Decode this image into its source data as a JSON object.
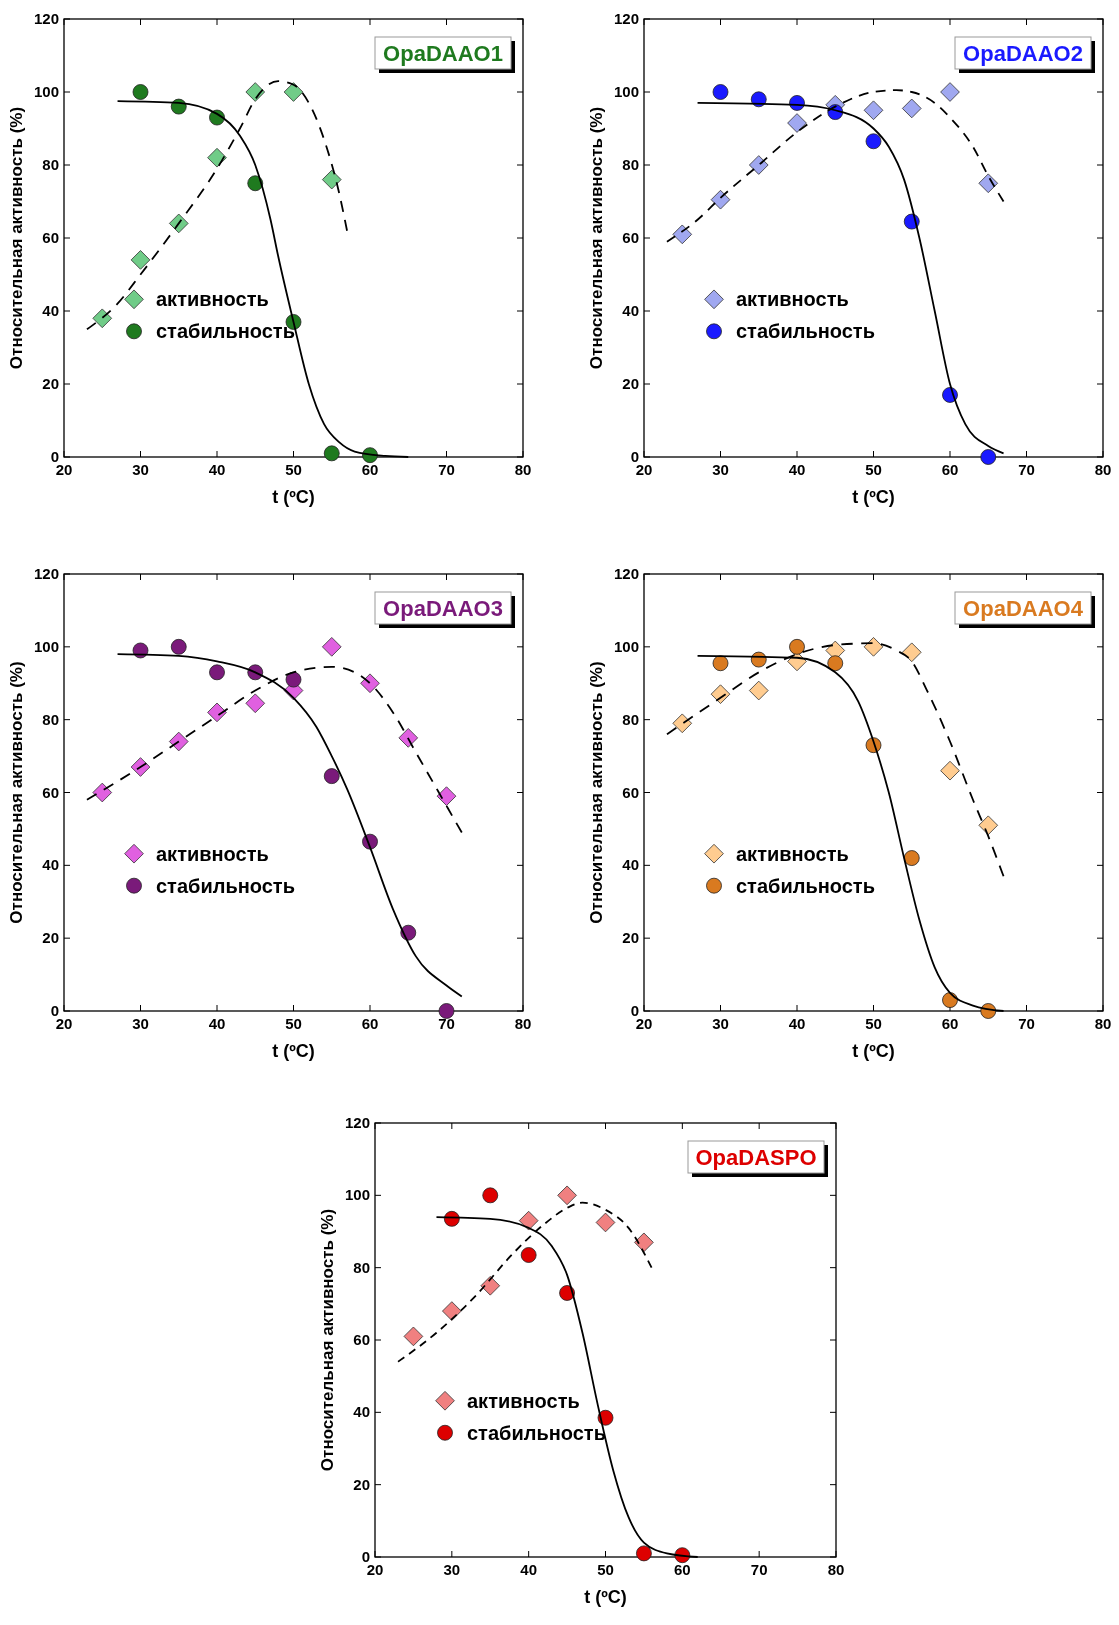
{
  "chart_data": [
    {
      "type": "scatter",
      "title": "OpaDAAO1",
      "xlabel": "t (ºC)",
      "ylabel": "Относительная активность (%)",
      "xlim": [
        20,
        80
      ],
      "ylim": [
        0,
        120
      ],
      "xticks": [
        20,
        30,
        40,
        50,
        60,
        70,
        80
      ],
      "yticks": [
        0,
        20,
        40,
        60,
        80,
        100,
        120
      ],
      "grid": false,
      "legend": "left",
      "series": [
        {
          "name": "активность",
          "type": "scatter",
          "marker": "diamond",
          "color": "#70cc88",
          "x": [
            25,
            30,
            35,
            40,
            45,
            50,
            55
          ],
          "values": [
            38,
            54,
            64,
            82,
            100,
            100,
            76
          ]
        },
        {
          "name": "стабильность",
          "type": "scatter",
          "marker": "circle",
          "color": "#1f7a1f",
          "x": [
            30,
            35,
            40,
            45,
            50,
            55,
            60
          ],
          "values": [
            100,
            96,
            93,
            75,
            37,
            1,
            0.5
          ]
        },
        {
          "type": "line",
          "marker": "none",
          "line_style": "solid",
          "color": "#000000",
          "x": [
            27,
            35,
            40,
            43,
            45,
            47,
            48,
            50,
            52,
            54,
            56,
            58,
            62,
            65
          ],
          "values": [
            97.5,
            97,
            94,
            88,
            80,
            65,
            55,
            37,
            20,
            9,
            4,
            1.5,
            0.3,
            0
          ]
        },
        {
          "type": "line",
          "marker": "none",
          "line_style": "dashed",
          "color": "#000000",
          "x": [
            23,
            27,
            30,
            35,
            40,
            43,
            45,
            48,
            50,
            52,
            54,
            56,
            57
          ],
          "values": [
            35,
            42,
            50,
            64,
            79,
            90,
            98,
            103,
            102,
            97,
            87,
            72,
            62
          ]
        }
      ]
    },
    {
      "type": "scatter",
      "title": "OpaDAAO2",
      "xlabel": "t (ºC)",
      "ylabel": "Относительная активность (%)",
      "xlim": [
        20,
        80
      ],
      "ylim": [
        0,
        120
      ],
      "xticks": [
        20,
        30,
        40,
        50,
        60,
        70,
        80
      ],
      "yticks": [
        0,
        20,
        40,
        60,
        80,
        100,
        120
      ],
      "grid": false,
      "legend": "left",
      "series": [
        {
          "name": "активность",
          "type": "scatter",
          "marker": "diamond",
          "color": "#a0a8f0",
          "x": [
            25,
            30,
            35,
            40,
            45,
            50,
            55,
            60,
            65
          ],
          "values": [
            61,
            70.5,
            80,
            91.5,
            96.5,
            95,
            95.5,
            100,
            75
          ]
        },
        {
          "name": "стабильность",
          "type": "scatter",
          "marker": "circle",
          "color": "#1a1aff",
          "x": [
            30,
            35,
            40,
            45,
            50,
            55,
            60,
            65
          ],
          "values": [
            100,
            98,
            97,
            94.5,
            86.5,
            64.5,
            17,
            0
          ]
        },
        {
          "type": "line",
          "marker": "none",
          "line_style": "solid",
          "color": "#000000",
          "x": [
            27,
            40,
            45,
            50,
            52,
            54,
            56,
            58,
            60,
            62,
            65,
            67
          ],
          "values": [
            97,
            96.5,
            95,
            90,
            85,
            76,
            60,
            40,
            20,
            9,
            3,
            1
          ]
        },
        {
          "type": "line",
          "marker": "none",
          "line_style": "dashed",
          "color": "#000000",
          "x": [
            23,
            27,
            30,
            35,
            40,
            45,
            50,
            53,
            55,
            58,
            60,
            63,
            65,
            67
          ],
          "values": [
            59,
            65,
            71,
            80,
            89,
            96,
            100,
            100.5,
            100,
            97,
            93,
            85,
            77,
            70
          ]
        }
      ]
    },
    {
      "type": "scatter",
      "title": "OpaDAAO3",
      "xlabel": "t (ºC)",
      "ylabel": "Относительная активность (%)",
      "xlim": [
        20,
        80
      ],
      "ylim": [
        0,
        120
      ],
      "xticks": [
        20,
        30,
        40,
        50,
        60,
        70,
        80
      ],
      "yticks": [
        0,
        20,
        40,
        60,
        80,
        100,
        120
      ],
      "grid": false,
      "legend": "left",
      "series": [
        {
          "name": "активность",
          "type": "scatter",
          "marker": "diamond",
          "color": "#e060e0",
          "x": [
            25,
            30,
            35,
            40,
            45,
            50,
            55,
            60,
            65,
            70
          ],
          "values": [
            60,
            67,
            74,
            82,
            84.5,
            88,
            100,
            90,
            75,
            59
          ]
        },
        {
          "name": "стабильность",
          "type": "scatter",
          "marker": "circle",
          "color": "#7a1a7a",
          "x": [
            30,
            35,
            40,
            45,
            50,
            55,
            60,
            65,
            70
          ],
          "values": [
            99,
            100,
            93,
            93,
            91,
            64.5,
            46.5,
            21.5,
            0
          ]
        },
        {
          "type": "line",
          "marker": "none",
          "line_style": "solid",
          "color": "#000000",
          "x": [
            27,
            35,
            40,
            45,
            50,
            53,
            55,
            57,
            60,
            63,
            66,
            70,
            72
          ],
          "values": [
            98,
            97.5,
            96,
            93,
            86,
            78,
            70,
            61,
            45,
            28,
            15,
            7,
            4
          ]
        },
        {
          "type": "line",
          "marker": "none",
          "line_style": "dashed",
          "color": "#000000",
          "x": [
            23,
            30,
            35,
            40,
            45,
            50,
            55,
            58,
            60,
            63,
            66,
            69,
            72
          ],
          "values": [
            58,
            67,
            74,
            81,
            88,
            93,
            94.5,
            93,
            90,
            82,
            71,
            60,
            49
          ]
        }
      ]
    },
    {
      "type": "scatter",
      "title": "OpaDAAO4",
      "xlabel": "t (ºC)",
      "ylabel": "Относительная активность (%)",
      "xlim": [
        20,
        80
      ],
      "ylim": [
        0,
        120
      ],
      "xticks": [
        20,
        30,
        40,
        50,
        60,
        70,
        80
      ],
      "yticks": [
        0,
        20,
        40,
        60,
        80,
        100,
        120
      ],
      "grid": false,
      "legend": "left",
      "series": [
        {
          "name": "активность",
          "type": "scatter",
          "marker": "diamond",
          "color": "#ffcc90",
          "x": [
            25,
            30,
            35,
            40,
            45,
            50,
            55,
            60,
            65
          ],
          "values": [
            79,
            87,
            88,
            96,
            99,
            100,
            98.5,
            66,
            51
          ]
        },
        {
          "name": "стабильность",
          "type": "scatter",
          "marker": "circle",
          "color": "#d97a20",
          "x": [
            30,
            35,
            40,
            45,
            50,
            55,
            60,
            65
          ],
          "values": [
            95.5,
            96.5,
            100,
            95.5,
            73,
            42,
            3,
            0
          ]
        },
        {
          "type": "line",
          "marker": "none",
          "line_style": "solid",
          "color": "#000000",
          "x": [
            27,
            40,
            45,
            48,
            50,
            52,
            54,
            56,
            58,
            60,
            63,
            67
          ],
          "values": [
            97.5,
            97,
            93,
            85,
            74,
            60,
            42,
            25,
            12,
            5,
            1.5,
            0
          ]
        },
        {
          "type": "line",
          "marker": "none",
          "line_style": "dashed",
          "color": "#000000",
          "x": [
            23,
            30,
            35,
            40,
            45,
            50,
            53,
            55,
            57,
            60,
            63,
            65,
            67
          ],
          "values": [
            76,
            86,
            93,
            98,
            100.5,
            101,
            99,
            96,
            88,
            74,
            58,
            48,
            37
          ]
        }
      ]
    },
    {
      "type": "scatter",
      "title": "OpaDASPO",
      "xlabel": "t (ºC)",
      "ylabel": "Относительная активность (%)",
      "xlim": [
        20,
        80
      ],
      "ylim": [
        0,
        120
      ],
      "xticks": [
        20,
        30,
        40,
        50,
        60,
        70,
        80
      ],
      "yticks": [
        0,
        20,
        40,
        60,
        80,
        100,
        120
      ],
      "grid": false,
      "legend": "left",
      "series": [
        {
          "name": "активность",
          "type": "scatter",
          "marker": "diamond",
          "color": "#f08080",
          "x": [
            25,
            30,
            35,
            40,
            45,
            50,
            55
          ],
          "values": [
            61,
            68,
            75,
            93,
            100,
            92.5,
            87
          ]
        },
        {
          "name": "стабильность",
          "type": "scatter",
          "marker": "circle",
          "color": "#dd0000",
          "x": [
            30,
            35,
            40,
            45,
            50,
            55,
            60
          ],
          "values": [
            93.5,
            100,
            83.5,
            73,
            38.5,
            1,
            0.5
          ]
        },
        {
          "type": "line",
          "marker": "none",
          "line_style": "solid",
          "color": "#000000",
          "x": [
            28,
            35,
            40,
            43,
            45,
            47,
            49,
            51,
            53,
            55,
            58,
            62
          ],
          "values": [
            94,
            93.5,
            91,
            86,
            78,
            62,
            42,
            24,
            11,
            4,
            1,
            0
          ]
        },
        {
          "type": "line",
          "marker": "none",
          "line_style": "dashed",
          "color": "#000000",
          "x": [
            23,
            28,
            33,
            38,
            42,
            45,
            47,
            50,
            53,
            56
          ],
          "values": [
            54,
            62,
            72,
            84,
            92,
            96.5,
            98,
            96,
            91,
            80
          ]
        }
      ]
    }
  ]
}
